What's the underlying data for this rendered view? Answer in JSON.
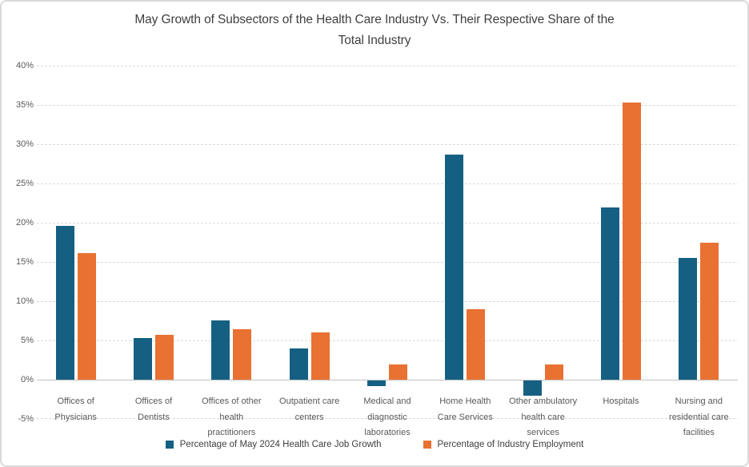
{
  "chart": {
    "title_line1": "May Growth of Subsectors of the Health Care Industry Vs. Their Respective Share of the",
    "title_line2": "Total Industry"
  },
  "chart_data": {
    "type": "bar",
    "title": "May Growth of Subsectors of the Health Care Industry Vs. Their Respective Share of the Total Industry",
    "categories": [
      "Offices of Physicians",
      "Offices of Dentists",
      "Offices of other health practitioners",
      "Outpatient care centers",
      "Medical and diagnostic laboratories",
      "Home Health Care Services",
      "Other ambulatory health care services",
      "Hospitals",
      "Nursing and residential care facilities"
    ],
    "category_label_lines": [
      [
        "Offices of",
        "Physicians"
      ],
      [
        "Offices of",
        "Dentists"
      ],
      [
        "Offices of other",
        "health",
        "practitioners"
      ],
      [
        "Outpatient care",
        "centers"
      ],
      [
        "Medical and",
        "diagnostic",
        "laboratories"
      ],
      [
        "Home Health",
        "Care Services"
      ],
      [
        "Other ambulatory",
        "health care",
        "services"
      ],
      [
        "Hospitals"
      ],
      [
        "Nursing and",
        "residential care",
        "facilities"
      ]
    ],
    "series": [
      {
        "name": "Percentage of May 2024 Health Care Job Growth",
        "color": "#156082",
        "values": [
          19.6,
          5.3,
          7.6,
          4.0,
          -0.7,
          28.7,
          -1.9,
          22.0,
          15.5
        ]
      },
      {
        "name": "Percentage of Industry Employment",
        "color": "#E97132",
        "values": [
          16.1,
          5.7,
          6.4,
          6.0,
          1.9,
          9.0,
          1.9,
          35.3,
          17.5
        ]
      }
    ],
    "y_axis": {
      "min": -5,
      "max": 40,
      "step": 5,
      "tick_suffix": "%",
      "tick_labels": [
        "-5%",
        "0%",
        "5%",
        "10%",
        "15%",
        "20%",
        "25%",
        "30%",
        "35%",
        "40%"
      ]
    },
    "grid": true,
    "legend_position": "bottom",
    "colors": {
      "series_growth": "#156082",
      "series_employment": "#E97132",
      "gridline": "#D9D9D9",
      "zero_axis_line": "#C0C0C0",
      "tick_text": "#595959",
      "title_text": "#404040"
    }
  }
}
